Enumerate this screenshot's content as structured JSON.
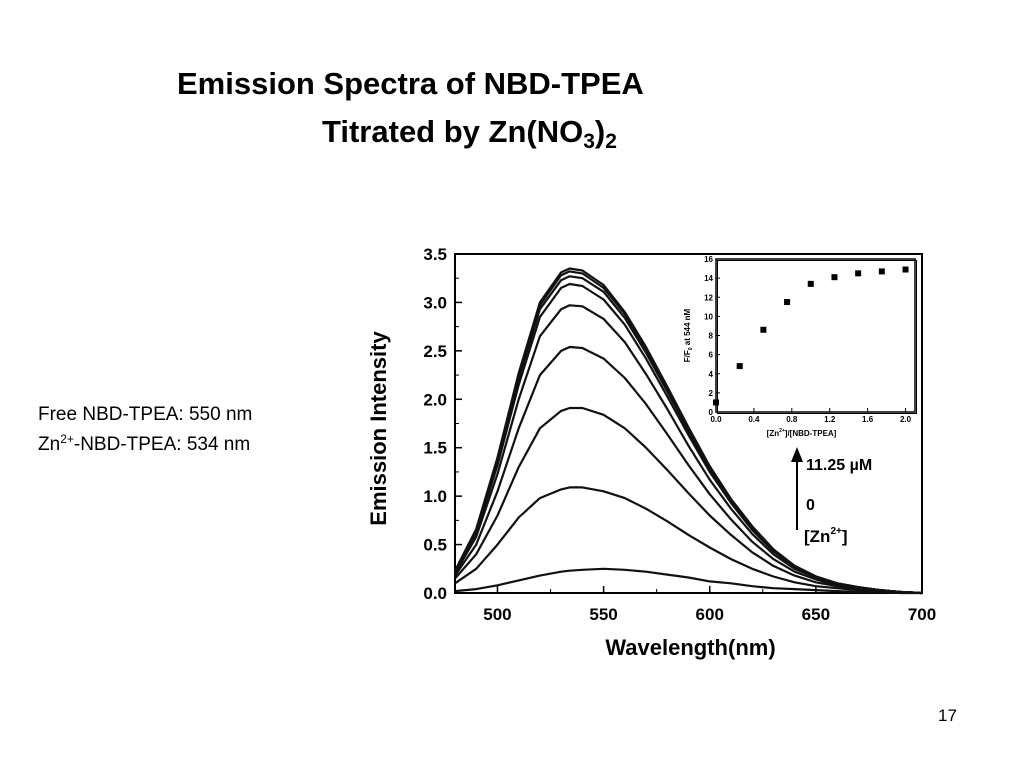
{
  "slide": {
    "title_line1": "Emission Spectra of NBD-TPEA",
    "title_line2_prefix": "Titrated by Zn(NO",
    "title_line2_sub1": "3",
    "title_line2_paren": ")",
    "title_line2_sub2": "2",
    "note_line1": "Free NBD-TPEA: 550 nm",
    "note_line2_prefix": "Zn",
    "note_line2_sup": "2+",
    "note_line2_suffix": "-NBD-TPEA: 534 nm",
    "page_number": "17"
  },
  "chart_data": [
    {
      "type": "line",
      "title": "",
      "xlabel": "Wavelength(nm)",
      "ylabel": "Emission Intensity",
      "xlim": [
        480,
        700
      ],
      "ylim": [
        0,
        3.5
      ],
      "xticks": [
        500,
        550,
        600,
        650,
        700
      ],
      "yticks": [
        0.0,
        0.5,
        1.0,
        1.5,
        2.0,
        2.5,
        3.0,
        3.5
      ],
      "x": [
        480,
        490,
        500,
        510,
        520,
        530,
        534,
        540,
        550,
        560,
        570,
        580,
        590,
        600,
        610,
        620,
        630,
        640,
        650,
        660,
        670,
        680,
        690,
        700
      ],
      "series": [
        {
          "values": [
            0.02,
            0.04,
            0.08,
            0.13,
            0.18,
            0.22,
            0.23,
            0.24,
            0.25,
            0.24,
            0.22,
            0.19,
            0.16,
            0.12,
            0.1,
            0.07,
            0.05,
            0.04,
            0.03,
            0.02,
            0.01,
            0.01,
            0.0,
            0.0
          ]
        },
        {
          "values": [
            0.1,
            0.25,
            0.5,
            0.78,
            0.98,
            1.07,
            1.09,
            1.09,
            1.05,
            0.98,
            0.87,
            0.74,
            0.6,
            0.47,
            0.35,
            0.25,
            0.17,
            0.11,
            0.07,
            0.05,
            0.03,
            0.02,
            0.01,
            0.0
          ]
        },
        {
          "values": [
            0.15,
            0.4,
            0.8,
            1.3,
            1.7,
            1.88,
            1.91,
            1.91,
            1.84,
            1.7,
            1.5,
            1.27,
            1.03,
            0.8,
            0.6,
            0.42,
            0.28,
            0.18,
            0.11,
            0.07,
            0.04,
            0.02,
            0.01,
            0.0
          ]
        },
        {
          "values": [
            0.18,
            0.5,
            1.05,
            1.7,
            2.25,
            2.5,
            2.54,
            2.53,
            2.42,
            2.22,
            1.95,
            1.64,
            1.32,
            1.02,
            0.76,
            0.53,
            0.35,
            0.22,
            0.14,
            0.08,
            0.05,
            0.03,
            0.01,
            0.0
          ]
        },
        {
          "values": [
            0.2,
            0.58,
            1.23,
            2.0,
            2.65,
            2.93,
            2.97,
            2.96,
            2.83,
            2.59,
            2.26,
            1.9,
            1.52,
            1.17,
            0.87,
            0.61,
            0.4,
            0.25,
            0.16,
            0.09,
            0.05,
            0.03,
            0.01,
            0.0
          ]
        },
        {
          "values": [
            0.21,
            0.62,
            1.32,
            2.15,
            2.85,
            3.15,
            3.19,
            3.17,
            3.03,
            2.77,
            2.42,
            2.03,
            1.63,
            1.25,
            0.93,
            0.65,
            0.43,
            0.27,
            0.17,
            0.1,
            0.06,
            0.03,
            0.01,
            0.0
          ]
        },
        {
          "values": [
            0.22,
            0.64,
            1.36,
            2.21,
            2.93,
            3.23,
            3.27,
            3.25,
            3.11,
            2.84,
            2.48,
            2.08,
            1.67,
            1.28,
            0.95,
            0.67,
            0.44,
            0.28,
            0.17,
            0.1,
            0.06,
            0.03,
            0.01,
            0.0
          ]
        },
        {
          "values": [
            0.22,
            0.65,
            1.38,
            2.25,
            2.97,
            3.28,
            3.32,
            3.3,
            3.15,
            2.88,
            2.52,
            2.11,
            1.69,
            1.3,
            0.96,
            0.68,
            0.45,
            0.28,
            0.17,
            0.1,
            0.06,
            0.03,
            0.01,
            0.0
          ]
        },
        {
          "values": [
            0.23,
            0.66,
            1.4,
            2.27,
            3.0,
            3.31,
            3.35,
            3.33,
            3.18,
            2.9,
            2.54,
            2.13,
            1.71,
            1.31,
            0.97,
            0.69,
            0.45,
            0.28,
            0.17,
            0.1,
            0.06,
            0.03,
            0.01,
            0.0
          ]
        }
      ],
      "annotations": {
        "arrow_top_label": "11.25 µM",
        "arrow_bottom_label": "0",
        "arrow_caption_prefix": "[Zn",
        "arrow_caption_sup": "2+",
        "arrow_caption_suffix": "]"
      }
    },
    {
      "type": "scatter",
      "title": "",
      "xlabel_prefix": "[Zn",
      "xlabel_sup": "2+",
      "xlabel_suffix": "]/[NBD-TPEA]",
      "ylabel_prefix": "F/F",
      "ylabel_sub": "0",
      "ylabel_suffix": " at 544 nM",
      "xlim": [
        0.0,
        2.1
      ],
      "ylim": [
        0,
        16
      ],
      "xticks": [
        "0.0",
        "0.4",
        "0.8",
        "1.2",
        "1.6",
        "2.0"
      ],
      "yticks": [
        "0",
        "2",
        "4",
        "6",
        "8",
        "10",
        "12",
        "14",
        "16"
      ],
      "x": [
        0.0,
        0.25,
        0.5,
        0.75,
        1.0,
        1.25,
        1.5,
        1.75,
        2.0
      ],
      "y": [
        1.0,
        4.8,
        8.6,
        11.5,
        13.4,
        14.1,
        14.5,
        14.7,
        14.9
      ]
    }
  ]
}
